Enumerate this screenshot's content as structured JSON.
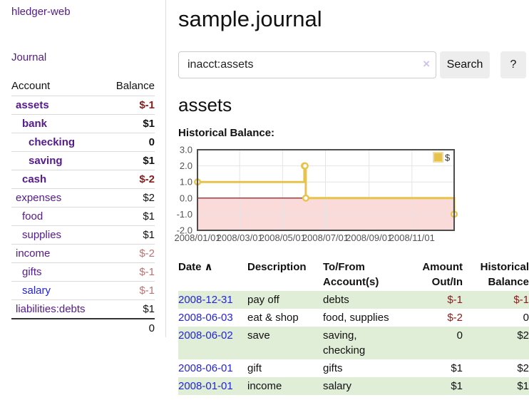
{
  "colors": {
    "link_purple": "#551a8b",
    "link_blue": "#2323dd",
    "neg_strong": "#8b1a1a",
    "neg_soft": "#bd7272",
    "row_green": "#e0eed8",
    "chart_gold": "#e8c34b",
    "chart_gold_light": "#f3dd95",
    "chart_pink": "#fbdada",
    "chart_zero_red": "#8f0000",
    "chart_border": "#4d4d4d",
    "chart_grid": "#e4e4e4",
    "chart_label": "#545454"
  },
  "sidebar": {
    "brand": "hledger-web",
    "nav": {
      "journal": "Journal"
    },
    "header": {
      "account": "Account",
      "balance": "Balance"
    },
    "accounts": [
      {
        "name": "assets",
        "balance": "$-1"
      },
      {
        "name": "bank",
        "balance": "$1"
      },
      {
        "name": "checking",
        "balance": "0"
      },
      {
        "name": "saving",
        "balance": "$1"
      },
      {
        "name": "cash",
        "balance": "$-2"
      },
      {
        "name": "expenses",
        "balance": "$2"
      },
      {
        "name": "food",
        "balance": "$1"
      },
      {
        "name": "supplies",
        "balance": "$1"
      },
      {
        "name": "income",
        "balance": "$-2"
      },
      {
        "name": "gifts",
        "balance": "$-1"
      },
      {
        "name": "salary",
        "balance": "$-1"
      },
      {
        "name": "liabilities:debts",
        "balance": "$1"
      }
    ],
    "total": "0"
  },
  "header": {
    "title": "sample.journal"
  },
  "search": {
    "value": "inacct:assets",
    "clear_icon": "×",
    "search_label": "Search",
    "help_label": "?"
  },
  "account_page": {
    "title": "assets",
    "chart_heading": "Historical Balance:"
  },
  "chart_data": {
    "type": "line",
    "step": true,
    "title": "Historical Balance",
    "series": [
      {
        "name": "$",
        "points": [
          [
            "2008-01-01",
            1
          ],
          [
            "2008-06-01",
            2
          ],
          [
            "2008-06-02",
            2
          ],
          [
            "2008-06-03",
            0
          ],
          [
            "2008-12-31",
            -1
          ]
        ]
      }
    ],
    "xlim": [
      "2008-01-01",
      "2008-12-31"
    ],
    "ylim": [
      -2,
      3
    ],
    "xticks": [
      "2008-01-01",
      "2008-03-01",
      "2008-05-01",
      "2008-07-01",
      "2008-09-01",
      "2008-11-01"
    ],
    "xtick_labels": [
      "2008/01/01",
      "2008/03/01",
      "2008/05/01",
      "2008/07/01",
      "2008/09/01",
      "2008/11/01"
    ],
    "yticks": [
      3,
      2,
      1,
      0,
      -1,
      -2
    ],
    "ytick_labels": [
      "3.0",
      "2.0",
      "1.0",
      "0.0",
      "-1.0",
      "-2.0"
    ],
    "legend": {
      "label": "$",
      "position": "top-right"
    },
    "grid": true,
    "negative_region_shaded": true
  },
  "register": {
    "headers": {
      "date": "Date",
      "description": "Description",
      "accounts": "To/From Account(s)",
      "amount": "Amount Out/In",
      "balance": "Historical Balance"
    },
    "sort_icon": "∧",
    "rows": [
      {
        "date": "2008-12-31",
        "description": "pay off",
        "accounts": "debts",
        "amount": "$-1",
        "balance": "$-1"
      },
      {
        "date": "2008-06-03",
        "description": "eat & shop",
        "accounts": "food, supplies",
        "amount": "$-2",
        "balance": "0"
      },
      {
        "date": "2008-06-02",
        "description": "save",
        "accounts": "saving, checking",
        "amount": "0",
        "balance": "$2"
      },
      {
        "date": "2008-06-01",
        "description": "gift",
        "accounts": "gifts",
        "amount": "$1",
        "balance": "$2"
      },
      {
        "date": "2008-01-01",
        "description": "income",
        "accounts": "salary",
        "amount": "$1",
        "balance": "$1"
      }
    ]
  }
}
